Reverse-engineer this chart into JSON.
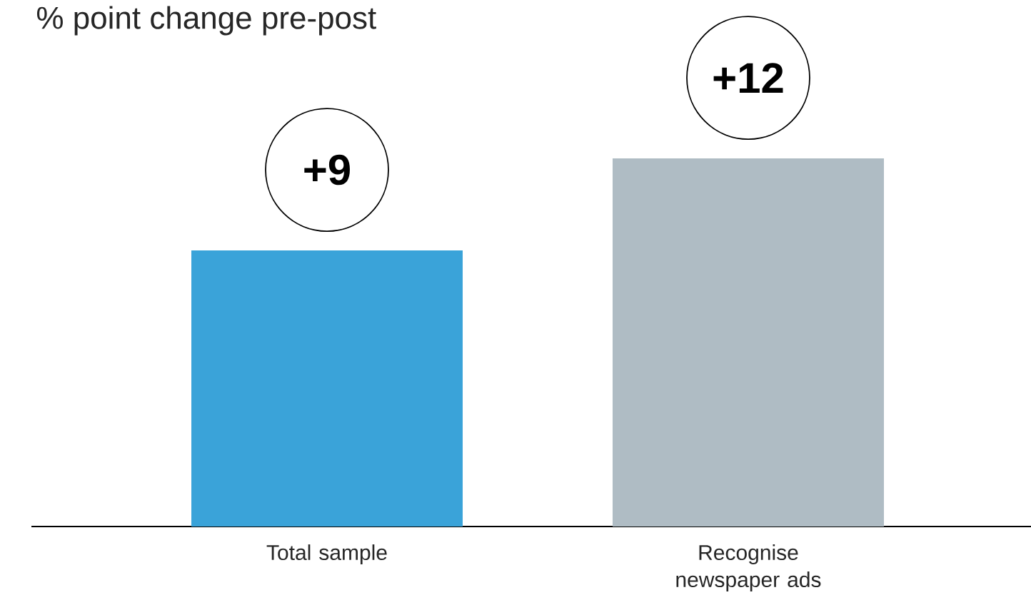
{
  "chart_data": {
    "type": "bar",
    "title": "% point change pre-post",
    "categories": [
      "Total sample",
      "Recognise newspaper ads"
    ],
    "values": [
      9,
      12
    ],
    "colors": [
      "#3aa3d9",
      "#afbcc4"
    ],
    "value_labels": [
      "+9",
      "+12"
    ]
  }
}
